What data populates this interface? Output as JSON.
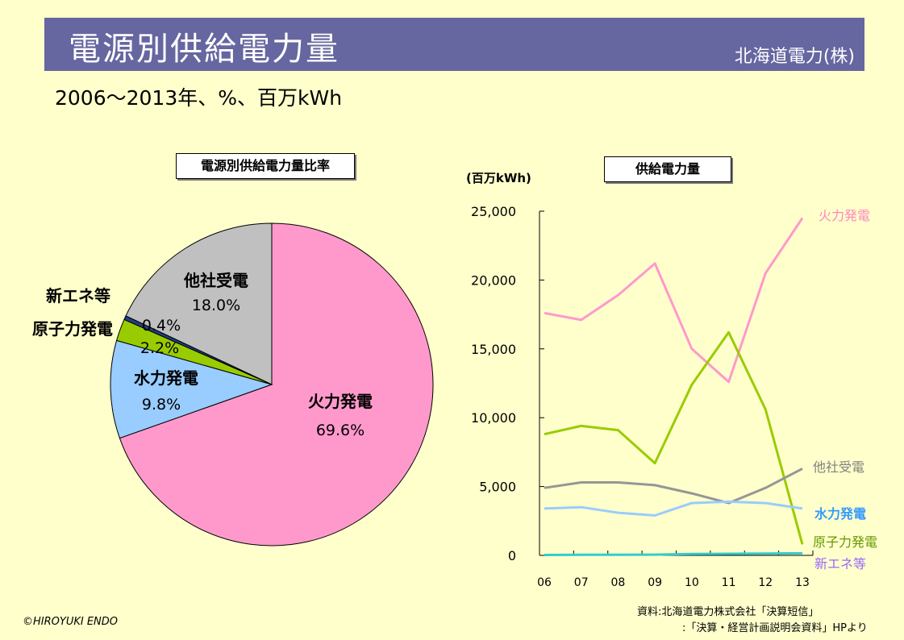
{
  "header": {
    "title": "電源別供給電力量",
    "company": "北海道電力(株)",
    "subtitle": "2006～2013年、%、百万kWh"
  },
  "pie_box_title": "電源別供給電力量比率",
  "line_box_title": "供給電力量",
  "line_unit_label": "(百万kWh)",
  "footer": {
    "copyright": "©HIROYUKI ENDO",
    "source_line1": "資料:北海道電力株式会社「決算短信」",
    "source_line2": ":「決算・経営計画説明会資料」HPより"
  },
  "chart_data": [
    {
      "type": "pie",
      "title": "電源別供給電力量比率",
      "slices": [
        {
          "name": "火力発電",
          "value": 69.6,
          "label": "69.6%",
          "color": "#ff99cc"
        },
        {
          "name": "水力発電",
          "value": 9.8,
          "label": "9.8%",
          "color": "#99ccff"
        },
        {
          "name": "原子力発電",
          "value": 2.2,
          "label": "2.2%",
          "color": "#99cc00"
        },
        {
          "name": "新エネ等",
          "value": 0.4,
          "label": "0.4%",
          "color": "#1f3f7f"
        },
        {
          "name": "他社受電",
          "value": 18.0,
          "label": "18.0%",
          "color": "#c0c0c0"
        }
      ]
    },
    {
      "type": "line",
      "title": "供給電力量",
      "ylabel": "(百万kWh)",
      "categories": [
        "06",
        "07",
        "08",
        "09",
        "10",
        "11",
        "12",
        "13"
      ],
      "ylim": [
        0,
        25000
      ],
      "yticks": [
        "0",
        "5,000",
        "10,000",
        "15,000",
        "20,000",
        "25,000"
      ],
      "ytick_values": [
        0,
        5000,
        10000,
        15000,
        20000,
        25000
      ],
      "series": [
        {
          "name": "火力発電",
          "color": "#ff99cc",
          "label_color": "#ff88c0",
          "values": [
            17600,
            17100,
            18900,
            21200,
            15000,
            12600,
            20500,
            24500
          ]
        },
        {
          "name": "原子力発電",
          "color": "#99cc00",
          "label_color": "#669900",
          "values": [
            8800,
            9400,
            9100,
            6700,
            12400,
            16200,
            10600,
            800
          ]
        },
        {
          "name": "他社受電",
          "color": "#969696",
          "label_color": "#808080",
          "values": [
            4900,
            5300,
            5300,
            5100,
            4500,
            3800,
            4900,
            6300
          ]
        },
        {
          "name": "水力発電",
          "color": "#99ccff",
          "label_color": "#3399ff",
          "values": [
            3400,
            3500,
            3100,
            2900,
            3800,
            3900,
            3800,
            3400
          ]
        },
        {
          "name": "新エネ等",
          "color": "#33cccc",
          "label_color": "#9966ff",
          "values": [
            30,
            40,
            40,
            50,
            100,
            120,
            130,
            150
          ]
        }
      ]
    }
  ]
}
